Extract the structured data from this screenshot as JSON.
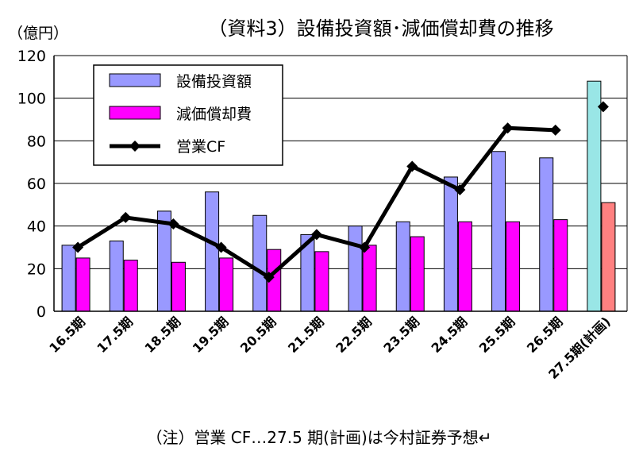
{
  "chart_data": {
    "type": "bar",
    "title": "（資料3）設備投資額･減価償却費の推移",
    "unit_label": "（億円）",
    "categories": [
      "16.5期",
      "17.5期",
      "18.5期",
      "19.5期",
      "20.5期",
      "21.5期",
      "22.5期",
      "23.5期",
      "24.5期",
      "25.5期",
      "26.5期",
      "27.5期(計画)"
    ],
    "series": [
      {
        "name": "設備投資額",
        "type": "bar",
        "color": "#9999ff",
        "values": [
          31,
          33,
          47,
          56,
          45,
          36,
          40,
          42,
          63,
          75,
          72,
          108
        ]
      },
      {
        "name": "減価償却費",
        "type": "bar",
        "color": "#ff00ff",
        "values": [
          25,
          24,
          23,
          25,
          29,
          28,
          31,
          35,
          42,
          42,
          43,
          51
        ]
      },
      {
        "name": "営業CF",
        "type": "line",
        "color": "#000000",
        "values": [
          30,
          44,
          41,
          30,
          16,
          36,
          30,
          68,
          57,
          86,
          85,
          96
        ]
      }
    ],
    "forecast_colors": {
      "bar1": "#99e6e6",
      "bar2": "#ff8080"
    },
    "ylim": [
      0,
      120
    ],
    "yticks": [
      "0",
      "20",
      "40",
      "60",
      "80",
      "100",
      "120"
    ],
    "grid": true,
    "legend_position": "top-left",
    "note": "（注）営業 CF…27.5 期(計画)は今村証券予想↵"
  }
}
